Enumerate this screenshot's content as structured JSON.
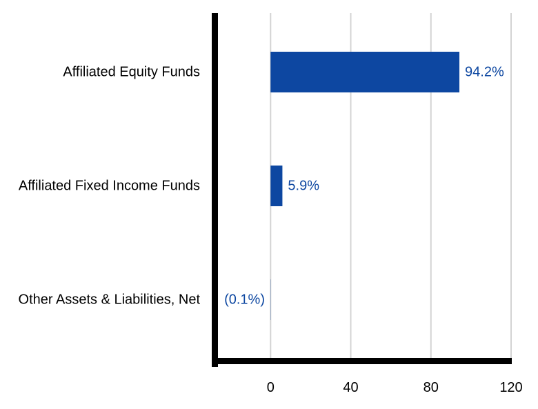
{
  "chart_data": {
    "type": "bar",
    "orientation": "horizontal",
    "categories": [
      "Affiliated Equity Funds",
      "Affiliated Fixed Income Funds",
      "Other Assets & Liabilities, Net"
    ],
    "values": [
      94.2,
      5.9,
      -0.1
    ],
    "data_labels": [
      "94.2%",
      "5.9%",
      "(0.1%)"
    ],
    "xlim": [
      -29,
      120
    ],
    "x_ticks": [
      0,
      40,
      80,
      120
    ],
    "x_tick_labels": [
      "0",
      "40",
      "80",
      "120"
    ],
    "grid": "vertical",
    "title": "",
    "xlabel": "",
    "ylabel": "",
    "colors": {
      "bar": "#0d47a1",
      "label": "#0d47a1",
      "grid": "#d3d3d3",
      "axis": "#000000",
      "text": "#000000"
    }
  }
}
